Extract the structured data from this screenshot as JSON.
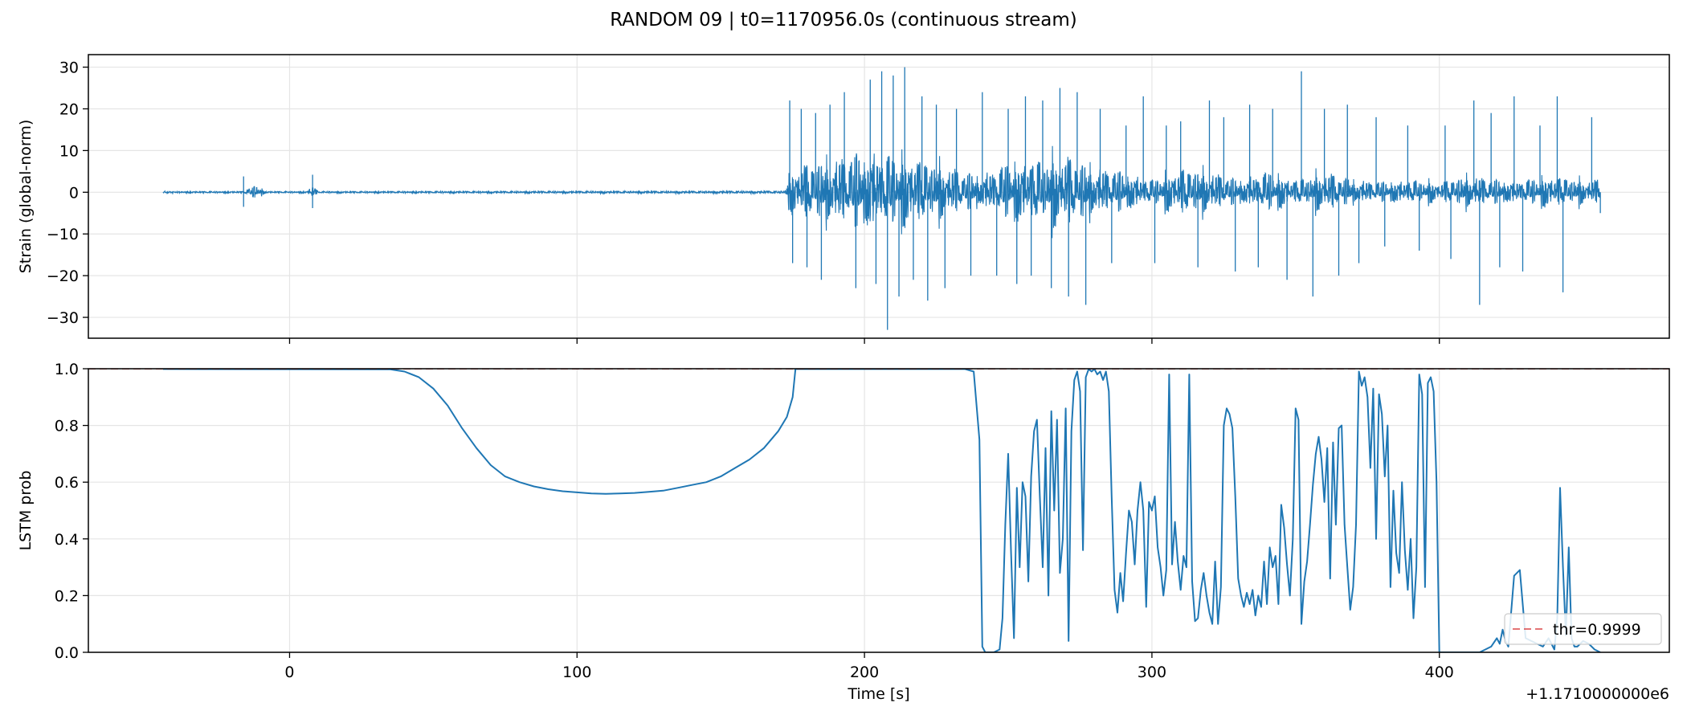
{
  "figure": {
    "title": "RANDOM 09 | t0=1170956.0s (continuous stream)",
    "offset_text": "+1.1710000000e6"
  },
  "colors": {
    "series": "#1f77b4",
    "threshold": "#d62728",
    "grid": "#e5e5e5",
    "axes": "#000000"
  },
  "chart_data": [
    {
      "type": "line",
      "panel": "top",
      "ylabel": "Strain (global-norm)",
      "xlabel": "",
      "xlim": [
        -70,
        480
      ],
      "ylim": [
        -35,
        33
      ],
      "xticks": [
        0,
        100,
        200,
        300,
        400
      ],
      "yticks": [
        -30,
        -20,
        -10,
        0,
        10,
        20,
        30
      ],
      "yticklabels": [
        "−30",
        "−20",
        "−10",
        "0",
        "10",
        "20",
        "30"
      ],
      "grid": true,
      "series": [
        {
          "x_range": [
            -44,
            456
          ],
          "quiet_until": 172,
          "envelope_x": [
            -44,
            -16,
            -12,
            -8,
            6,
            8,
            10,
            172,
            175,
            180,
            190,
            200,
            210,
            220,
            240,
            250,
            260,
            270,
            280,
            290,
            300,
            310,
            320,
            330,
            340,
            350,
            360,
            370,
            380,
            390,
            400,
            410,
            420,
            430,
            440,
            450,
            456
          ],
          "envelope_amp": [
            0.2,
            0.2,
            1.5,
            0.2,
            0.2,
            1.5,
            0.2,
            0.3,
            6,
            7,
            8,
            10,
            9,
            8,
            4,
            7,
            8,
            9,
            6,
            5,
            3,
            6,
            5,
            3,
            5,
            3,
            5,
            3,
            2.5,
            3,
            2.5,
            4,
            3,
            3,
            4,
            3,
            3
          ],
          "spikes": [
            [
              -16,
              3.8
            ],
            [
              -16,
              -3.5
            ],
            [
              8,
              4.2
            ],
            [
              8,
              -3.8
            ],
            [
              174,
              22
            ],
            [
              175,
              -17
            ],
            [
              178,
              20
            ],
            [
              180,
              -18
            ],
            [
              183,
              19
            ],
            [
              185,
              -21
            ],
            [
              188,
              21
            ],
            [
              193,
              24
            ],
            [
              197,
              -23
            ],
            [
              202,
              27
            ],
            [
              204,
              -22
            ],
            [
              206,
              29
            ],
            [
              208,
              -33
            ],
            [
              210,
              28
            ],
            [
              212,
              -25
            ],
            [
              214,
              30
            ],
            [
              217,
              -21
            ],
            [
              220,
              23
            ],
            [
              222,
              -26
            ],
            [
              225,
              21
            ],
            [
              228,
              -23
            ],
            [
              232,
              20
            ],
            [
              237,
              -20
            ],
            [
              241,
              24
            ],
            [
              246,
              -20
            ],
            [
              250,
              20
            ],
            [
              253,
              -22
            ],
            [
              256,
              23
            ],
            [
              258,
              -20
            ],
            [
              262,
              22
            ],
            [
              265,
              -23
            ],
            [
              268,
              25
            ],
            [
              271,
              -25
            ],
            [
              274,
              24
            ],
            [
              277,
              -27
            ],
            [
              282,
              20
            ],
            [
              286,
              -17
            ],
            [
              291,
              16
            ],
            [
              297,
              23
            ],
            [
              301,
              -17
            ],
            [
              305,
              16
            ],
            [
              310,
              17
            ],
            [
              316,
              -18
            ],
            [
              320,
              22
            ],
            [
              325,
              18
            ],
            [
              329,
              -19
            ],
            [
              334,
              21
            ],
            [
              337,
              -18
            ],
            [
              342,
              20
            ],
            [
              347,
              -21
            ],
            [
              352,
              29
            ],
            [
              356,
              -25
            ],
            [
              360,
              20
            ],
            [
              365,
              -20
            ],
            [
              368,
              21
            ],
            [
              372,
              -17
            ],
            [
              378,
              18
            ],
            [
              381,
              -13
            ],
            [
              389,
              16
            ],
            [
              393,
              -14
            ],
            [
              402,
              16
            ],
            [
              404,
              -16
            ],
            [
              412,
              22
            ],
            [
              414,
              -27
            ],
            [
              418,
              19
            ],
            [
              421,
              -18
            ],
            [
              426,
              23
            ],
            [
              429,
              -19
            ],
            [
              435,
              16
            ],
            [
              441,
              23
            ],
            [
              443,
              -24
            ],
            [
              453,
              18
            ],
            [
              455,
              3
            ],
            [
              456,
              -5
            ]
          ]
        }
      ]
    },
    {
      "type": "line",
      "panel": "bottom",
      "ylabel": "LSTM prob",
      "xlabel": "Time [s]",
      "xlim": [
        -70,
        480
      ],
      "ylim": [
        0,
        1
      ],
      "xticks": [
        0,
        100,
        200,
        300,
        400
      ],
      "yticks": [
        0.0,
        0.2,
        0.4,
        0.6,
        0.8,
        1.0
      ],
      "yticklabels": [
        "0.0",
        "0.2",
        "0.4",
        "0.6",
        "0.8",
        "1.0"
      ],
      "grid": true,
      "threshold": {
        "value": 0.9999,
        "label": "thr=0.9999"
      },
      "legend_placement": "lower right",
      "series": [
        {
          "x": [
            -44,
            35,
            40,
            45,
            50,
            55,
            60,
            65,
            70,
            75,
            80,
            85,
            90,
            95,
            100,
            105,
            110,
            115,
            120,
            125,
            130,
            135,
            140,
            145,
            150,
            155,
            160,
            165,
            170,
            173,
            175,
            176,
            178,
            180,
            185,
            190,
            195,
            200,
            205,
            210,
            215,
            220,
            225,
            230,
            235,
            238,
            240,
            241,
            242,
            243,
            245,
            247,
            248,
            249,
            250,
            251,
            252,
            253,
            254,
            255,
            256,
            257,
            258,
            259,
            260,
            261,
            262,
            263,
            264,
            265,
            266,
            267,
            268,
            269,
            270,
            271,
            272,
            273,
            274,
            275,
            276,
            277,
            278,
            279,
            280,
            281,
            282,
            283,
            284,
            285,
            286,
            287,
            288,
            289,
            290,
            291,
            292,
            293,
            294,
            295,
            296,
            297,
            298,
            299,
            300,
            301,
            302,
            303,
            304,
            305,
            306,
            307,
            308,
            309,
            310,
            311,
            312,
            313,
            314,
            315,
            316,
            317,
            318,
            319,
            320,
            321,
            322,
            323,
            324,
            325,
            326,
            327,
            328,
            329,
            330,
            331,
            332,
            333,
            334,
            335,
            336,
            337,
            338,
            339,
            340,
            341,
            342,
            343,
            344,
            345,
            346,
            347,
            348,
            349,
            350,
            351,
            352,
            353,
            354,
            355,
            356,
            357,
            358,
            359,
            360,
            361,
            362,
            363,
            364,
            365,
            366,
            367,
            368,
            369,
            370,
            371,
            372,
            373,
            374,
            375,
            376,
            377,
            378,
            379,
            380,
            381,
            382,
            383,
            384,
            385,
            386,
            387,
            388,
            389,
            390,
            391,
            392,
            393,
            394,
            395,
            396,
            397,
            398,
            399,
            400,
            405,
            410,
            412,
            414,
            416,
            418,
            420,
            421,
            422,
            423,
            424,
            426,
            428,
            430,
            432,
            434,
            436,
            438,
            440,
            441,
            442,
            443,
            444,
            445,
            446,
            447,
            448,
            450,
            452,
            454,
            456
          ],
          "y": [
            0.999,
            0.998,
            0.99,
            0.97,
            0.93,
            0.87,
            0.79,
            0.72,
            0.66,
            0.62,
            0.6,
            0.585,
            0.575,
            0.568,
            0.564,
            0.56,
            0.559,
            0.56,
            0.562,
            0.566,
            0.57,
            0.58,
            0.59,
            0.6,
            0.62,
            0.65,
            0.68,
            0.72,
            0.78,
            0.83,
            0.9,
            0.999,
            0.999,
            0.999,
            0.999,
            0.999,
            0.999,
            0.999,
            0.999,
            0.999,
            0.999,
            0.999,
            0.999,
            0.999,
            0.999,
            0.99,
            0.75,
            0.02,
            0.0,
            0.0,
            0.0,
            0.01,
            0.12,
            0.45,
            0.7,
            0.35,
            0.05,
            0.58,
            0.3,
            0.6,
            0.55,
            0.25,
            0.62,
            0.78,
            0.82,
            0.55,
            0.3,
            0.72,
            0.2,
            0.85,
            0.5,
            0.82,
            0.28,
            0.4,
            0.86,
            0.04,
            0.78,
            0.96,
            0.99,
            0.92,
            0.36,
            0.97,
            0.999,
            0.99,
            0.999,
            0.98,
            0.99,
            0.96,
            0.99,
            0.92,
            0.55,
            0.22,
            0.14,
            0.28,
            0.18,
            0.35,
            0.5,
            0.46,
            0.31,
            0.5,
            0.6,
            0.5,
            0.16,
            0.53,
            0.5,
            0.55,
            0.37,
            0.3,
            0.2,
            0.29,
            0.98,
            0.31,
            0.46,
            0.32,
            0.22,
            0.34,
            0.3,
            0.98,
            0.25,
            0.11,
            0.12,
            0.22,
            0.28,
            0.2,
            0.14,
            0.1,
            0.32,
            0.1,
            0.23,
            0.8,
            0.86,
            0.84,
            0.79,
            0.55,
            0.26,
            0.2,
            0.16,
            0.21,
            0.17,
            0.22,
            0.13,
            0.2,
            0.16,
            0.32,
            0.17,
            0.37,
            0.3,
            0.34,
            0.17,
            0.52,
            0.44,
            0.31,
            0.2,
            0.4,
            0.86,
            0.82,
            0.1,
            0.25,
            0.32,
            0.45,
            0.59,
            0.7,
            0.76,
            0.68,
            0.53,
            0.72,
            0.26,
            0.74,
            0.45,
            0.79,
            0.8,
            0.45,
            0.3,
            0.15,
            0.23,
            0.45,
            0.99,
            0.94,
            0.97,
            0.9,
            0.65,
            0.93,
            0.4,
            0.91,
            0.84,
            0.62,
            0.8,
            0.23,
            0.57,
            0.35,
            0.28,
            0.6,
            0.36,
            0.22,
            0.4,
            0.12,
            0.3,
            0.98,
            0.91,
            0.23,
            0.95,
            0.97,
            0.92,
            0.6,
            0.0,
            0.0,
            0.0,
            0.0,
            0.0,
            0.01,
            0.02,
            0.05,
            0.03,
            0.08,
            0.04,
            0.02,
            0.27,
            0.29,
            0.05,
            0.04,
            0.03,
            0.02,
            0.05,
            0.01,
            0.12,
            0.58,
            0.3,
            0.06,
            0.37,
            0.05,
            0.02,
            0.02,
            0.04,
            0.03,
            0.01,
            0.0
          ]
        }
      ]
    }
  ]
}
